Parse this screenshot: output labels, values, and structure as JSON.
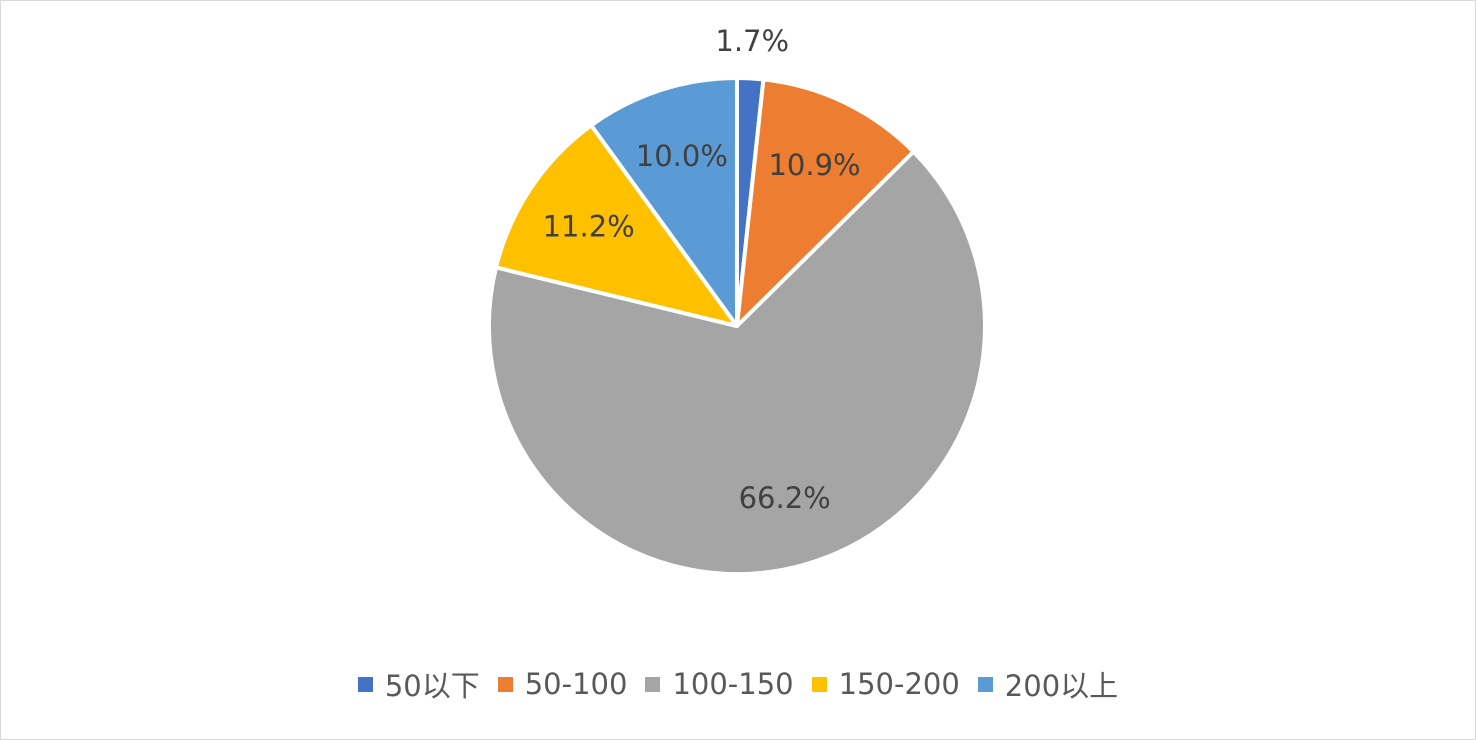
{
  "chart_data": {
    "type": "pie",
    "categories": [
      "50以下",
      "50-100",
      "100-150",
      "150-200",
      "200以上"
    ],
    "values": [
      1.7,
      10.9,
      66.2,
      11.2,
      10.0
    ],
    "data_labels": [
      "1.7%",
      "10.9%",
      "66.2%",
      "11.2%",
      "10.0%"
    ],
    "colors": [
      "#4472c4",
      "#ed7d31",
      "#a5a5a5",
      "#ffc000",
      "#5b9bd5"
    ],
    "legend_position": "bottom",
    "start_angle": "12 o'clock, clockwise"
  }
}
